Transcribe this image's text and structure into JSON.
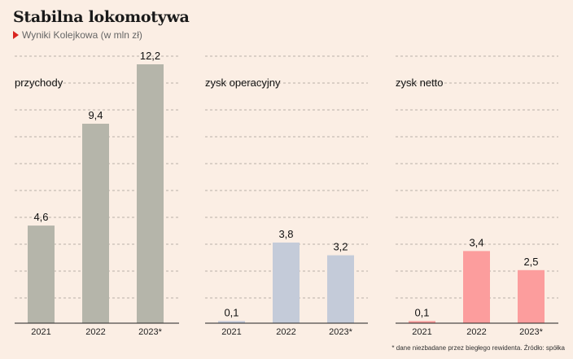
{
  "header": {
    "title": "Stabilna lokomotywa",
    "subtitle": "Wyniki Kolejkowa (w mln zł)"
  },
  "footnote": "* dane niezbadane przez biegłego rewidenta. Źródło: spółka",
  "colors": {
    "background": "#fbeee4",
    "accent": "#d9241f"
  },
  "chart_data": [
    {
      "type": "bar",
      "title": "przychody",
      "categories": [
        "2021",
        "2022",
        "2023*"
      ],
      "values": [
        4.6,
        9.4,
        12.2
      ],
      "value_labels": [
        "4,6",
        "9,4",
        "12,2"
      ],
      "ylim": [
        0,
        12.2
      ],
      "grid": true,
      "color": "#b5b5aa"
    },
    {
      "type": "bar",
      "title": "zysk operacyjny",
      "categories": [
        "2021",
        "2022",
        "2023*"
      ],
      "values": [
        0.1,
        3.8,
        3.2
      ],
      "value_labels": [
        "0,1",
        "3,8",
        "3,2"
      ],
      "ylim": [
        0,
        12.2
      ],
      "grid": true,
      "color": "#c4cbd9"
    },
    {
      "type": "bar",
      "title": "zysk netto",
      "categories": [
        "2021",
        "2022",
        "2023*"
      ],
      "values": [
        0.1,
        3.4,
        2.5
      ],
      "value_labels": [
        "0,1",
        "3,4",
        "2,5"
      ],
      "ylim": [
        0,
        12.2
      ],
      "grid": true,
      "color": "#fc9d9d"
    }
  ]
}
